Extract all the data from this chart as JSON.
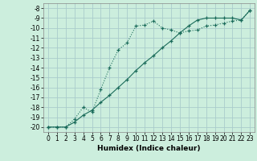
{
  "xlabel": "Humidex (Indice chaleur)",
  "background_color": "#cceedd",
  "grid_color": "#aacccc",
  "line_color": "#1a6b5a",
  "xlim": [
    -0.5,
    23.5
  ],
  "ylim": [
    -20.5,
    -7.5
  ],
  "yticks": [
    -8,
    -9,
    -10,
    -11,
    -12,
    -13,
    -14,
    -15,
    -16,
    -17,
    -18,
    -19,
    -20
  ],
  "xticks": [
    0,
    1,
    2,
    3,
    4,
    5,
    6,
    7,
    8,
    9,
    10,
    11,
    12,
    13,
    14,
    15,
    16,
    17,
    18,
    19,
    20,
    21,
    22,
    23
  ],
  "line1_x": [
    0,
    1,
    2,
    3,
    4,
    5,
    6,
    7,
    8,
    9,
    10,
    11,
    12,
    13,
    14,
    15,
    16,
    17,
    18,
    19,
    20,
    21,
    22,
    23
  ],
  "line1_y": [
    -20.0,
    -20.0,
    -20.0,
    -19.2,
    -18.0,
    -18.5,
    -16.2,
    -14.0,
    -12.2,
    -11.5,
    -9.8,
    -9.7,
    -9.3,
    -10.0,
    -10.2,
    -10.5,
    -10.3,
    -10.2,
    -9.8,
    -9.7,
    -9.5,
    -9.3,
    -9.2,
    -8.2
  ],
  "line2_x": [
    0,
    1,
    2,
    3,
    4,
    5,
    6,
    7,
    8,
    9,
    10,
    11,
    12,
    13,
    14,
    15,
    16,
    17,
    18,
    19,
    20,
    21,
    22,
    23
  ],
  "line2_y": [
    -20.0,
    -20.0,
    -20.0,
    -19.5,
    -18.8,
    -18.3,
    -17.5,
    -16.8,
    -16.0,
    -15.2,
    -14.3,
    -13.5,
    -12.8,
    -12.0,
    -11.3,
    -10.5,
    -9.8,
    -9.2,
    -9.0,
    -9.0,
    -9.0,
    -9.0,
    -9.2,
    -8.2
  ],
  "tick_fontsize": 5.5,
  "xlabel_fontsize": 6.5
}
